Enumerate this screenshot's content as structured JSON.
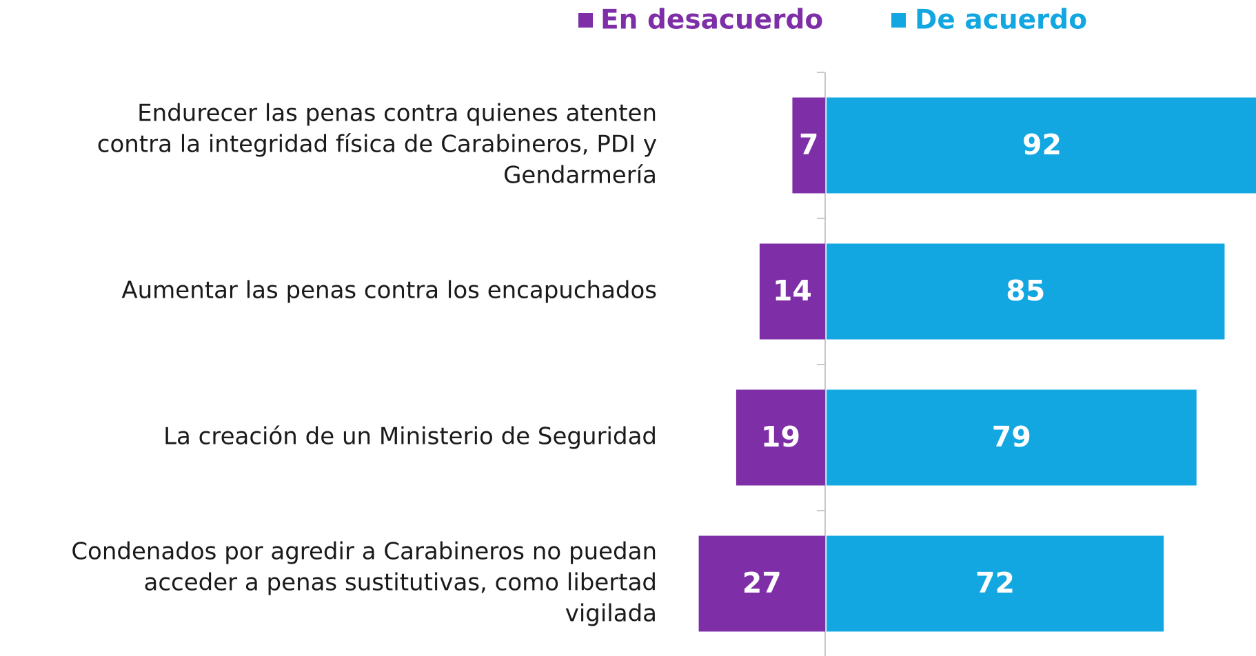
{
  "chart_data": {
    "type": "diverging_bar",
    "categories": [
      [
        "Endurecer las penas contra quienes atenten",
        "contra la integridad física de Carabineros, PDI y",
        "Gendarmería"
      ],
      [
        "Aumentar las penas contra los encapuchados"
      ],
      [
        "La creación de un Ministerio de Seguridad"
      ],
      [
        "Condenados por agredir a Carabineros no puedan",
        "acceder a penas sustitutivas, como libertad",
        "vigilada"
      ]
    ],
    "series": [
      {
        "name": "En desacuerdo",
        "color": "#7e2ea6",
        "values": [
          7,
          14,
          19,
          27
        ]
      },
      {
        "name": "De acuerdo",
        "color": "#12a7e1",
        "values": [
          92,
          85,
          79,
          72
        ]
      }
    ]
  }
}
